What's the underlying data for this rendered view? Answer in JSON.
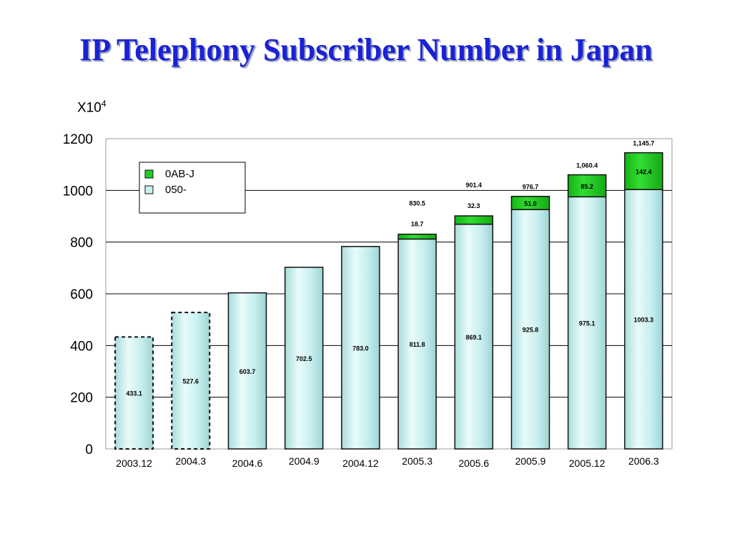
{
  "slide": {
    "title": "IP Telephony Subscriber Number in Japan",
    "unit_base": "X10",
    "unit_exp": "4"
  },
  "chart_data": {
    "type": "bar",
    "stacked": true,
    "categories": [
      "2003.12",
      "2004.3",
      "2004.6",
      "2004.9",
      "2004.12",
      "2005.3",
      "2005.6",
      "2005.9",
      "2005.12",
      "2006.3"
    ],
    "ylim": [
      0,
      1200
    ],
    "yticks": [
      0,
      200,
      400,
      600,
      800,
      1000,
      1200
    ],
    "grid": true,
    "legend_position": "top-left",
    "series": [
      {
        "name": "050-",
        "color": "#c6f0ef",
        "values": [
          433.1,
          527.6,
          603.7,
          702.5,
          783.0,
          811.8,
          869.1,
          925.8,
          975.1,
          1003.3
        ],
        "labels": [
          "433.1",
          "527.6",
          "603.7",
          "702.5",
          "783.0",
          "811.8",
          "869.1",
          "925.8",
          "975.1",
          "1003.3"
        ]
      },
      {
        "name": "0AB-J",
        "color": "#22cc22",
        "values": [
          null,
          null,
          null,
          null,
          null,
          18.7,
          32.3,
          51.0,
          85.2,
          142.4
        ],
        "labels": [
          "",
          "",
          "",
          "",
          "",
          "18.7",
          "32.3",
          "51.0",
          "85.2",
          "142.4"
        ]
      }
    ],
    "totals": [
      "",
      "",
      "",
      "",
      "",
      "830.5",
      "901.4",
      "976.7",
      "1,060.4",
      "1,145.7"
    ],
    "dashed_bars": [
      "2003.12",
      "2004.3"
    ]
  }
}
